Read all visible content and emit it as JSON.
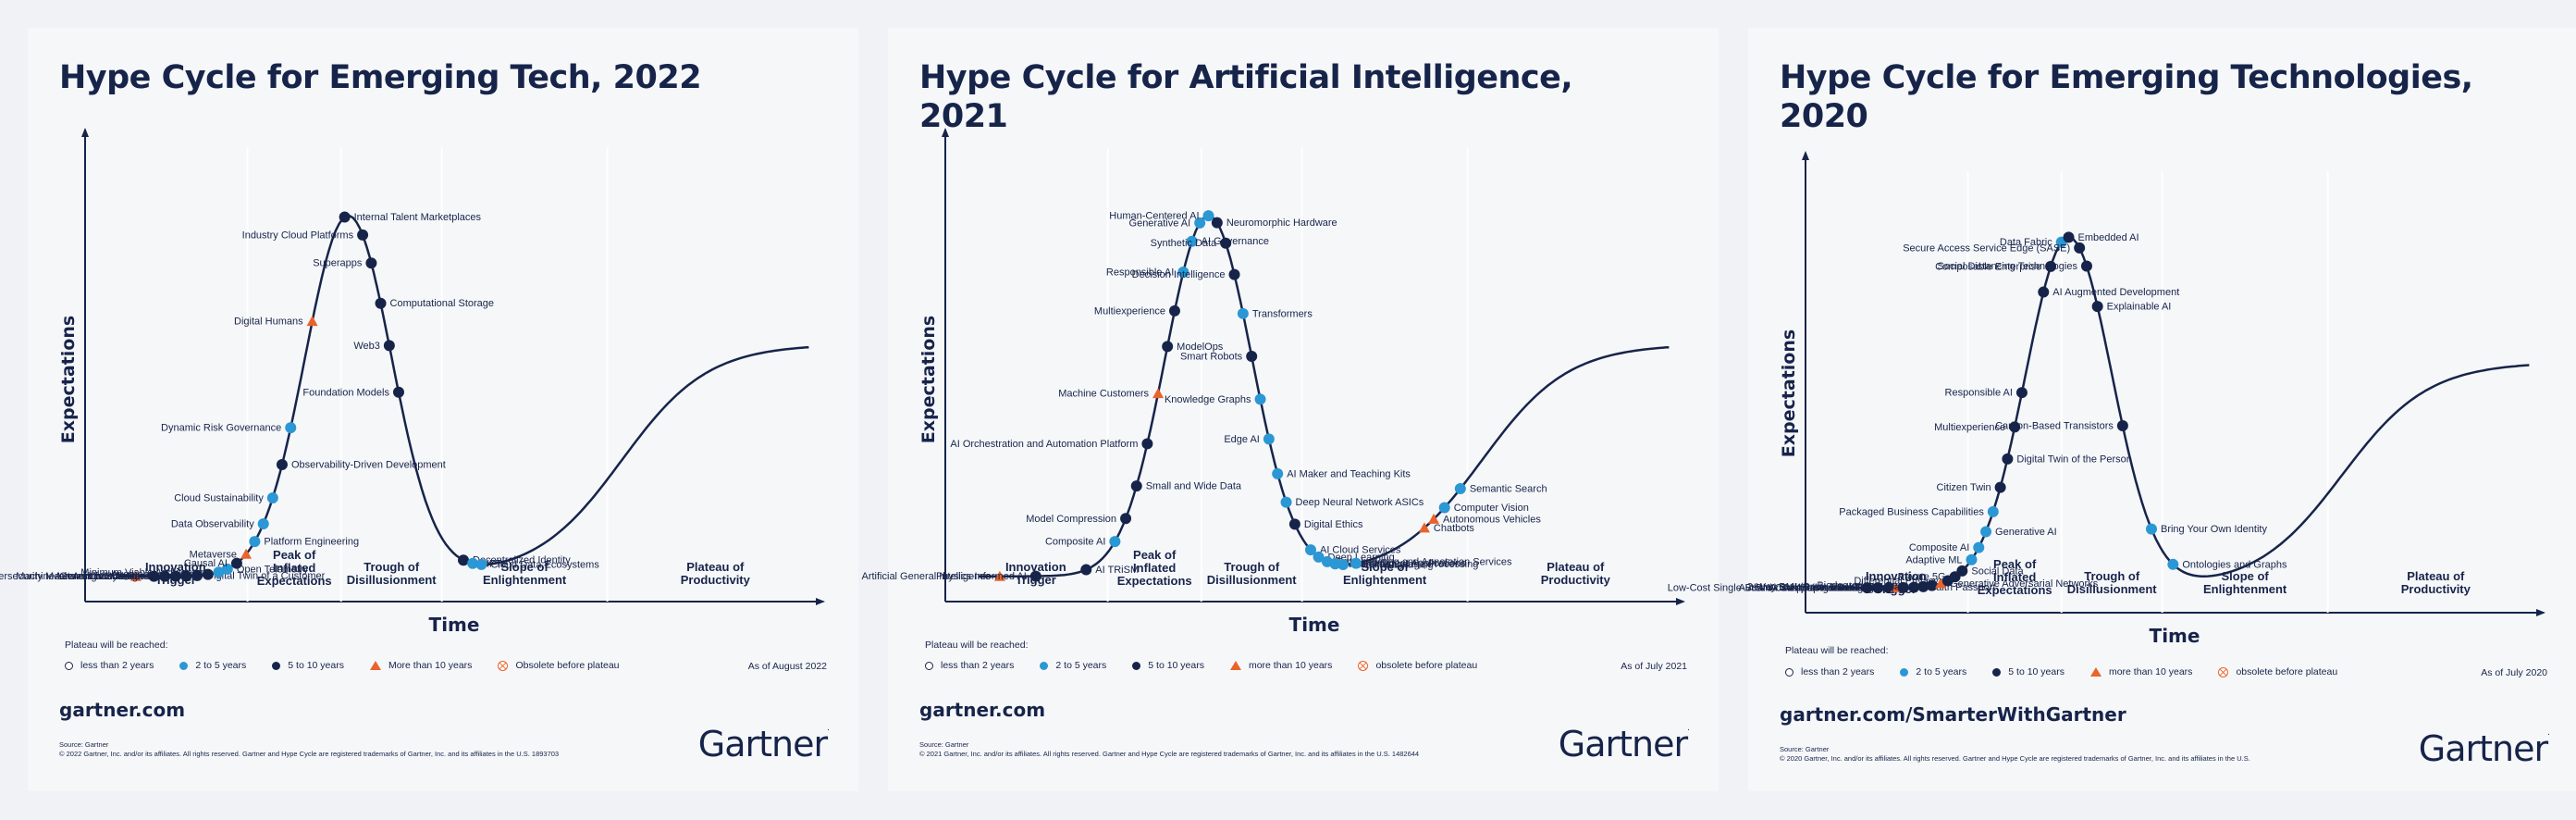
{
  "legend_title": "Plateau will be reached:",
  "colors": {
    "navy": "#17244a",
    "blue": "#2b97d4",
    "orange": "#e9632b",
    "white": "#ffffff"
  },
  "chart_data": [
    {
      "type": "scatter",
      "title": "Hype Cycle for Emerging Tech, 2022",
      "xlabel": "Time",
      "ylabel": "Expectations",
      "phases": [
        "Innovation Trigger",
        "Peak of Inflated Expectations",
        "Trough of Disillusionment",
        "Slope of Enlightenment",
        "Plateau of Productivity"
      ],
      "legend": [
        {
          "marker": "lt2",
          "label": "less than 2 years"
        },
        {
          "marker": "2to5",
          "label": "2 to 5 years"
        },
        {
          "marker": "5to10",
          "label": "5 to 10 years"
        },
        {
          "marker": "gt10",
          "label": "More than 10 years"
        },
        {
          "marker": "obs",
          "label": "Obsolete before plateau"
        }
      ],
      "as_of": "As of August 2022",
      "site": "gartner.com",
      "source": "Source: Gartner\n© 2022 Gartner, Inc. and/or its affiliates. All rights reserved. Gartner and Hype Cycle are registered trademarks of Gartner, Inc. and its affiliates in the U.S. 1893703",
      "logo": "Gartner",
      "points": [
        {
          "name": "Cybersecurity Mesh Architecture",
          "t": 0.045,
          "cat": "gt10"
        },
        {
          "name": "Autonomic Systems",
          "t": 0.07,
          "cat": "5to10"
        },
        {
          "name": "Generative Design AI",
          "t": 0.085,
          "cat": "5to10"
        },
        {
          "name": "Code Generation",
          "t": 0.1,
          "cat": "5to10"
        },
        {
          "name": "Machine Learning Code Generation",
          "t": 0.115,
          "cat": "5to10"
        },
        {
          "name": "Digital Twin of a Customer",
          "t": 0.13,
          "cat": "5to10"
        },
        {
          "name": "Augmented FinOps",
          "t": 0.145,
          "cat": "5to10"
        },
        {
          "name": "Minimum Viable Architecture",
          "t": 0.16,
          "cat": "2to5"
        },
        {
          "name": "Open Telemetry",
          "t": 0.172,
          "cat": "2to5"
        },
        {
          "name": "Causal AI",
          "t": 0.185,
          "cat": "5to10"
        },
        {
          "name": "Metaverse",
          "t": 0.198,
          "cat": "gt10"
        },
        {
          "name": "Platform Engineering",
          "t": 0.21,
          "cat": "2to5"
        },
        {
          "name": "Data Observability",
          "t": 0.222,
          "cat": "2to5"
        },
        {
          "name": "Cloud Sustainability",
          "t": 0.235,
          "cat": "2to5"
        },
        {
          "name": "Observability-Driven Development",
          "t": 0.248,
          "cat": "5to10"
        },
        {
          "name": "Dynamic Risk Governance",
          "t": 0.26,
          "cat": "2to5"
        },
        {
          "name": "Digital Humans",
          "t": 0.29,
          "cat": "gt10"
        },
        {
          "name": "Internal Talent Marketplaces",
          "t": 0.335,
          "cat": "5to10"
        },
        {
          "name": "Industry Cloud Platforms",
          "t": 0.36,
          "cat": "5to10"
        },
        {
          "name": "Superapps",
          "t": 0.372,
          "cat": "5to10"
        },
        {
          "name": "Computational Storage",
          "t": 0.385,
          "cat": "5to10"
        },
        {
          "name": "Web3",
          "t": 0.397,
          "cat": "5to10"
        },
        {
          "name": "Foundation Models",
          "t": 0.41,
          "cat": "5to10"
        },
        {
          "name": "Decentralized Identity",
          "t": 0.5,
          "cat": "5to10"
        },
        {
          "name": "NFT",
          "t": 0.513,
          "cat": "2to5"
        },
        {
          "name": "Cloud Data Ecosystems",
          "t": 0.525,
          "cat": "2to5"
        }
      ]
    },
    {
      "type": "scatter",
      "title": "Hype Cycle for Artificial Intelligence, 2021",
      "xlabel": "Time",
      "ylabel": "Expectations",
      "phases": [
        "Innovation Trigger",
        "Peak of Inflated Expectations",
        "Trough of Disillusionment",
        "Slope of Enlightenment",
        "Plateau of Productivity"
      ],
      "legend": [
        {
          "marker": "lt2",
          "label": "less than 2 years"
        },
        {
          "marker": "2to5",
          "label": "2 to 5 years"
        },
        {
          "marker": "5to10",
          "label": "5 to 10 years"
        },
        {
          "marker": "gt10",
          "label": "more than 10 years"
        },
        {
          "marker": "obs",
          "label": "obsolete before plateau"
        }
      ],
      "as_of": "As of July 2021",
      "site": "gartner.com",
      "source": "Source: Gartner\n© 2021 Gartner, Inc. and/or its affiliates. All rights reserved. Gartner and Hype Cycle are registered trademarks of Gartner, Inc. and its affiliates in the U.S. 1482644",
      "logo": "Gartner",
      "points": [
        {
          "name": "Artificial General Intelligence",
          "t": 0.05,
          "cat": "gt10"
        },
        {
          "name": "Physics-Informed AI",
          "t": 0.1,
          "cat": "5to10"
        },
        {
          "name": "AI TRiSM",
          "t": 0.17,
          "cat": "5to10"
        },
        {
          "name": "Composite AI",
          "t": 0.21,
          "cat": "2to5"
        },
        {
          "name": "Model Compression",
          "t": 0.225,
          "cat": "5to10"
        },
        {
          "name": "Small and Wide Data",
          "t": 0.24,
          "cat": "5to10"
        },
        {
          "name": "AI Orchestration and Automation Platform",
          "t": 0.255,
          "cat": "5to10"
        },
        {
          "name": "Machine Customers",
          "t": 0.27,
          "cat": "gt10"
        },
        {
          "name": "ModelOps",
          "t": 0.283,
          "cat": "5to10"
        },
        {
          "name": "Multiexperience",
          "t": 0.293,
          "cat": "5to10"
        },
        {
          "name": "Responsible AI",
          "t": 0.305,
          "cat": "2to5"
        },
        {
          "name": "AI Governance",
          "t": 0.317,
          "cat": "2to5"
        },
        {
          "name": "Generative AI",
          "t": 0.328,
          "cat": "2to5"
        },
        {
          "name": "Human-Centered AI",
          "t": 0.34,
          "cat": "2to5"
        },
        {
          "name": "Neuromorphic Hardware",
          "t": 0.352,
          "cat": "5to10"
        },
        {
          "name": "Synthetic Data",
          "t": 0.364,
          "cat": "5to10"
        },
        {
          "name": "Decision Intelligence",
          "t": 0.376,
          "cat": "5to10"
        },
        {
          "name": "Transformers",
          "t": 0.388,
          "cat": "2to5"
        },
        {
          "name": "Smart Robots",
          "t": 0.4,
          "cat": "5to10"
        },
        {
          "name": "Knowledge Graphs",
          "t": 0.412,
          "cat": "2to5"
        },
        {
          "name": "Edge AI",
          "t": 0.424,
          "cat": "2to5"
        },
        {
          "name": "AI Maker and Teaching Kits",
          "t": 0.436,
          "cat": "2to5"
        },
        {
          "name": "Deep Neural Network ASICs",
          "t": 0.448,
          "cat": "2to5"
        },
        {
          "name": "Digital Ethics",
          "t": 0.46,
          "cat": "5to10"
        },
        {
          "name": "AI Cloud Services",
          "t": 0.482,
          "cat": "2to5"
        },
        {
          "name": "Deep Learning",
          "t": 0.493,
          "cat": "2to5"
        },
        {
          "name": "Data Labeling and Annotation Services",
          "t": 0.505,
          "cat": "2to5"
        },
        {
          "name": "Natural Language Processing",
          "t": 0.516,
          "cat": "2to5"
        },
        {
          "name": "Machine Learning",
          "t": 0.527,
          "cat": "2to5"
        },
        {
          "name": "Intelligent Applications",
          "t": 0.545,
          "cat": "2to5"
        },
        {
          "name": "Chatbots",
          "t": 0.64,
          "cat": "gt10"
        },
        {
          "name": "Autonomous Vehicles",
          "t": 0.653,
          "cat": "gt10"
        },
        {
          "name": "Computer Vision",
          "t": 0.668,
          "cat": "2to5"
        },
        {
          "name": "Semantic Search",
          "t": 0.69,
          "cat": "2to5"
        }
      ]
    },
    {
      "type": "scatter",
      "title": "Hype Cycle for Emerging Technologies, 2020",
      "xlabel": "Time",
      "ylabel": "Expectations",
      "phases": [
        "Innovation Trigger",
        "Peak of Inflated Expectations",
        "Trough of Disillusionment",
        "Slope of Enlightenment",
        "Plateau of Productivity"
      ],
      "legend": [
        {
          "marker": "lt2",
          "label": "less than 2 years"
        },
        {
          "marker": "2to5",
          "label": "2 to 5 years"
        },
        {
          "marker": "5to10",
          "label": "5 to 10 years"
        },
        {
          "marker": "gt10",
          "label": "more than 10 years"
        },
        {
          "marker": "obs",
          "label": "obsolete before plateau"
        }
      ],
      "as_of": "As of July 2020",
      "site": "gartner.com/SmarterWithGartner",
      "source": "Source: Gartner\n© 2020 Gartner, Inc. and/or its affiliates. All rights reserved. Gartner and Hype Cycle are registered trademarks of Gartner, Inc. and its affiliates in the U.S.",
      "logo": "Gartner",
      "points": [
        {
          "name": "Authenticated Provenance",
          "t": 0.06,
          "cat": "5to10"
        },
        {
          "name": "AI-Assisted Design",
          "t": 0.075,
          "cat": "5to10"
        },
        {
          "name": "Low-Cost Single-Board Computers at the Edge",
          "t": 0.09,
          "cat": "5to10"
        },
        {
          "name": "DNA Computing and Storage",
          "t": 0.1,
          "cat": "gt10"
        },
        {
          "name": "Self-Supervised Learning",
          "t": 0.11,
          "cat": "5to10"
        },
        {
          "name": "Health Passport",
          "t": 0.125,
          "cat": "5to10"
        },
        {
          "name": "2-Way BMI (Brain Machine Interface)",
          "t": 0.138,
          "cat": "5to10"
        },
        {
          "name": "Biodegradable Sensors",
          "t": 0.15,
          "cat": "5to10"
        },
        {
          "name": "Generative Adversarial Networks",
          "t": 0.162,
          "cat": "gt10"
        },
        {
          "name": "Differential Privacy",
          "t": 0.172,
          "cat": "5to10"
        },
        {
          "name": "Private 5G",
          "t": 0.182,
          "cat": "5to10"
        },
        {
          "name": "Social Data",
          "t": 0.192,
          "cat": "5to10"
        },
        {
          "name": "Adaptive ML",
          "t": 0.205,
          "cat": "2to5"
        },
        {
          "name": "Composite AI",
          "t": 0.215,
          "cat": "2to5"
        },
        {
          "name": "Generative AI",
          "t": 0.225,
          "cat": "2to5"
        },
        {
          "name": "Packaged Business Capabilities",
          "t": 0.235,
          "cat": "2to5"
        },
        {
          "name": "Citizen Twin",
          "t": 0.245,
          "cat": "5to10"
        },
        {
          "name": "Digital Twin of the Person",
          "t": 0.255,
          "cat": "5to10"
        },
        {
          "name": "Multiexperience",
          "t": 0.265,
          "cat": "5to10"
        },
        {
          "name": "Responsible AI",
          "t": 0.275,
          "cat": "5to10"
        },
        {
          "name": "AI Augmented Development",
          "t": 0.305,
          "cat": "5to10"
        },
        {
          "name": "Composable Enterprise",
          "t": 0.315,
          "cat": "5to10"
        },
        {
          "name": "Data Fabric",
          "t": 0.33,
          "cat": "2to5"
        },
        {
          "name": "Embedded AI",
          "t": 0.34,
          "cat": "5to10"
        },
        {
          "name": "Secure Access Service Edge (SASE)",
          "t": 0.355,
          "cat": "5to10"
        },
        {
          "name": "Social Distancing Technologies",
          "t": 0.365,
          "cat": "5to10"
        },
        {
          "name": "Explainable AI",
          "t": 0.38,
          "cat": "5to10"
        },
        {
          "name": "Carbon-Based Transistors",
          "t": 0.415,
          "cat": "5to10"
        },
        {
          "name": "Bring Your Own Identity",
          "t": 0.455,
          "cat": "2to5"
        },
        {
          "name": "Ontologies and Graphs",
          "t": 0.485,
          "cat": "2to5"
        }
      ]
    }
  ]
}
